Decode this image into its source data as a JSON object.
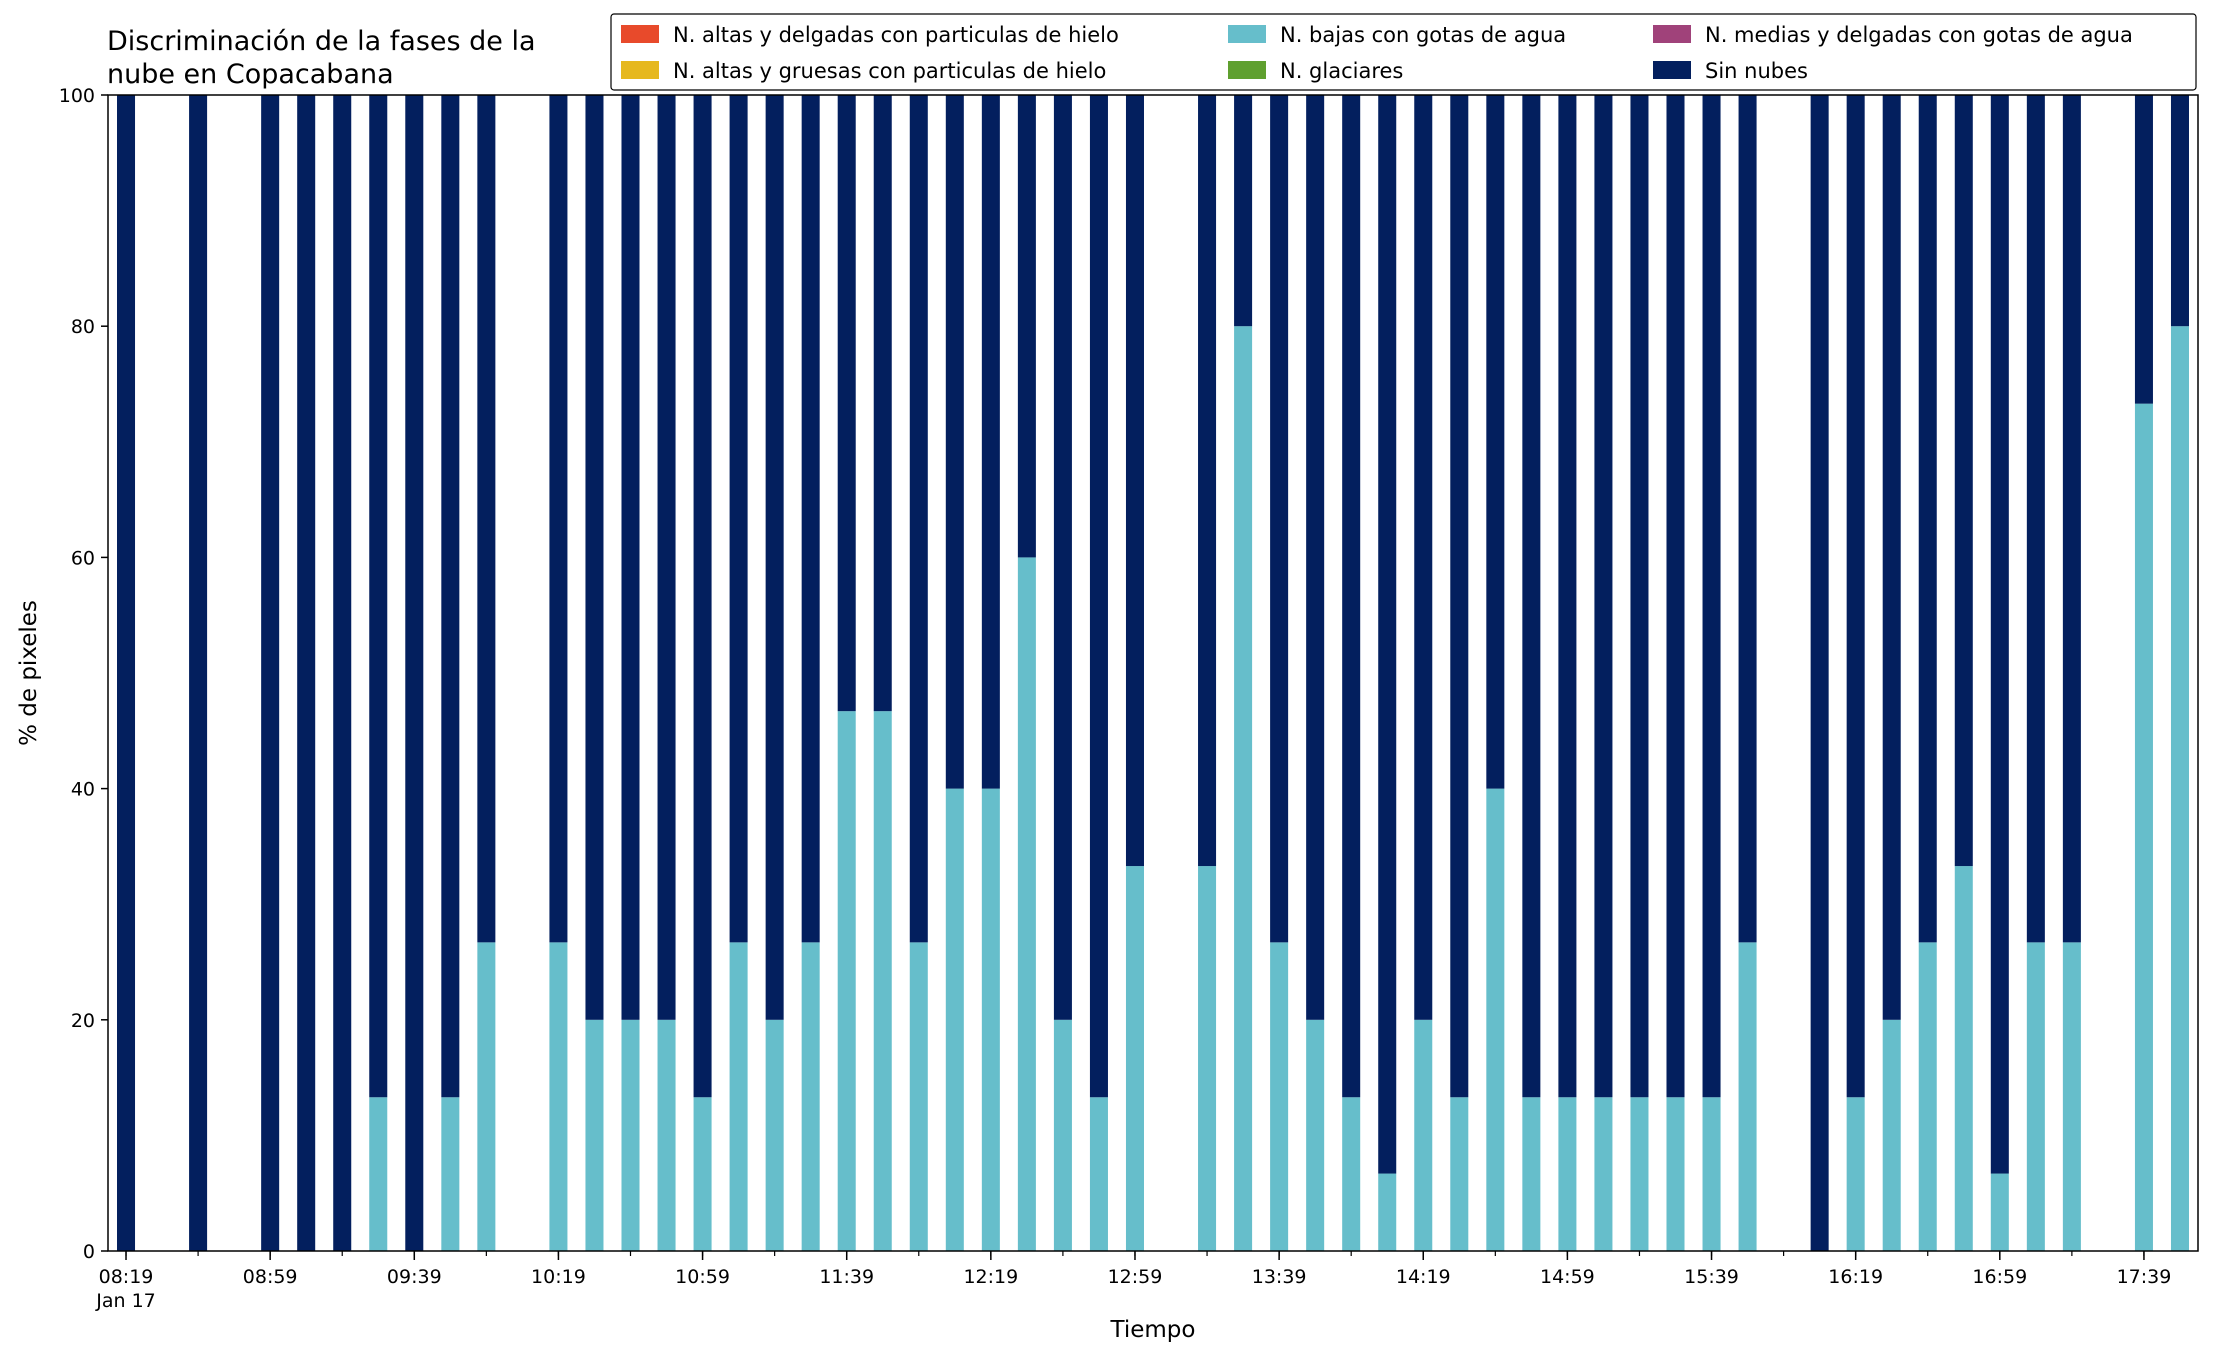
{
  "chart_data": {
    "type": "bar",
    "stacked": true,
    "title_lines": [
      "Discriminación de la fases de la",
      "nube en Copacabana"
    ],
    "xlabel": "Tiempo",
    "ylabel": "% de pixeles",
    "ylim": [
      0,
      100
    ],
    "yticks": [
      0,
      20,
      40,
      60,
      80,
      100
    ],
    "grid": false,
    "legend_position": "top-right",
    "x": [
      "08:19",
      "08:29",
      "08:39",
      "08:49",
      "08:59",
      "09:09",
      "09:19",
      "09:29",
      "09:39",
      "09:49",
      "09:59",
      "10:09",
      "10:19",
      "10:29",
      "10:39",
      "10:49",
      "10:59",
      "11:09",
      "11:19",
      "11:29",
      "11:39",
      "11:49",
      "11:59",
      "12:09",
      "12:19",
      "12:29",
      "12:39",
      "12:49",
      "12:59",
      "13:09",
      "13:19",
      "13:29",
      "13:39",
      "13:49",
      "13:59",
      "14:09",
      "14:19",
      "14:29",
      "14:39",
      "14:49",
      "14:59",
      "15:09",
      "15:19",
      "15:29",
      "15:39",
      "15:49",
      "15:59",
      "16:09",
      "16:19",
      "16:29",
      "16:39",
      "16:49",
      "16:59",
      "17:09",
      "17:19",
      "17:29",
      "17:39",
      "17:49"
    ],
    "xtick_labels": [
      {
        "time": "08:19",
        "line1": "08:19",
        "line2": "Jan 17"
      },
      {
        "time": "08:59",
        "line1": "08:59",
        "line2": ""
      },
      {
        "time": "09:39",
        "line1": "09:39",
        "line2": ""
      },
      {
        "time": "10:19",
        "line1": "10:19",
        "line2": ""
      },
      {
        "time": "10:59",
        "line1": "10:59",
        "line2": ""
      },
      {
        "time": "11:39",
        "line1": "11:39",
        "line2": ""
      },
      {
        "time": "12:19",
        "line1": "12:19",
        "line2": ""
      },
      {
        "time": "12:59",
        "line1": "12:59",
        "line2": ""
      },
      {
        "time": "13:39",
        "line1": "13:39",
        "line2": ""
      },
      {
        "time": "14:19",
        "line1": "14:19",
        "line2": ""
      },
      {
        "time": "14:59",
        "line1": "14:59",
        "line2": ""
      },
      {
        "time": "15:39",
        "line1": "15:39",
        "line2": ""
      },
      {
        "time": "16:19",
        "line1": "16:19",
        "line2": ""
      },
      {
        "time": "16:59",
        "line1": "16:59",
        "line2": ""
      },
      {
        "time": "17:39",
        "line1": "17:39",
        "line2": ""
      }
    ],
    "series": [
      {
        "name": "N. altas y delgadas con particulas de hielo",
        "color": "#e84a2b",
        "values": [
          0,
          null,
          0,
          null,
          0,
          0,
          0,
          0,
          0,
          0,
          0,
          null,
          0,
          0,
          0,
          0,
          0,
          0,
          0,
          0,
          0,
          0,
          0,
          0,
          0,
          0,
          0,
          0,
          0,
          null,
          0,
          0,
          0,
          0,
          0,
          0,
          0,
          0,
          0,
          0,
          0,
          0,
          0,
          0,
          0,
          0,
          null,
          0,
          0,
          0,
          0,
          0,
          0,
          0,
          0,
          null,
          0,
          0
        ]
      },
      {
        "name": "N. altas y gruesas con particulas de hielo",
        "color": "#e6b81e",
        "values": [
          0,
          null,
          0,
          null,
          0,
          0,
          0,
          0,
          0,
          0,
          0,
          null,
          0,
          0,
          0,
          0,
          0,
          0,
          0,
          0,
          0,
          0,
          0,
          0,
          0,
          0,
          0,
          0,
          0,
          null,
          0,
          0,
          0,
          0,
          0,
          0,
          0,
          0,
          0,
          0,
          0,
          0,
          0,
          0,
          0,
          0,
          null,
          0,
          0,
          0,
          0,
          0,
          0,
          0,
          0,
          null,
          0,
          0
        ]
      },
      {
        "name": "N. bajas con gotas de agua",
        "color": "#66becb",
        "values": [
          0,
          null,
          0,
          null,
          0,
          0,
          0,
          13.3,
          0,
          13.3,
          26.7,
          null,
          26.7,
          20,
          20,
          20,
          13.3,
          26.7,
          20,
          26.7,
          46.7,
          46.7,
          26.7,
          40,
          40,
          60,
          20,
          13.3,
          33.3,
          null,
          33.3,
          80,
          26.7,
          20,
          13.3,
          6.7,
          20,
          13.3,
          40,
          13.3,
          13.3,
          13.3,
          13.3,
          13.3,
          13.3,
          26.7,
          null,
          0,
          13.3,
          20,
          26.7,
          33.3,
          6.7,
          26.7,
          26.7,
          null,
          73.3,
          80
        ]
      },
      {
        "name": "N. glaciares",
        "color": "#5fa02f",
        "values": [
          0,
          null,
          0,
          null,
          0,
          0,
          0,
          0,
          0,
          0,
          0,
          null,
          0,
          0,
          0,
          0,
          0,
          0,
          0,
          0,
          0,
          0,
          0,
          0,
          0,
          0,
          0,
          0,
          0,
          null,
          0,
          0,
          0,
          0,
          0,
          0,
          0,
          0,
          0,
          0,
          0,
          0,
          0,
          0,
          0,
          0,
          null,
          0,
          0,
          0,
          0,
          0,
          0,
          0,
          0,
          null,
          0,
          0
        ]
      },
      {
        "name": "N. medias y delgadas con gotas de agua",
        "color": "#a0427a",
        "values": [
          0,
          null,
          0,
          null,
          0,
          0,
          0,
          0,
          0,
          0,
          0,
          null,
          0,
          0,
          0,
          0,
          0,
          0,
          0,
          0,
          0,
          0,
          0,
          0,
          0,
          0,
          0,
          0,
          0,
          null,
          0,
          0,
          0,
          0,
          0,
          0,
          0,
          0,
          0,
          0,
          0,
          0,
          0,
          0,
          0,
          0,
          null,
          0,
          0,
          0,
          0,
          0,
          0,
          0,
          0,
          null,
          0,
          0
        ]
      },
      {
        "name": "Sin nubes",
        "color": "#031f5e",
        "values": [
          100,
          null,
          100,
          null,
          100,
          100,
          100,
          86.7,
          100,
          86.7,
          73.3,
          null,
          73.3,
          80,
          80,
          80,
          86.7,
          73.3,
          80,
          73.3,
          53.3,
          53.3,
          73.3,
          60,
          60,
          40,
          80,
          86.7,
          66.7,
          null,
          66.7,
          20,
          73.3,
          80,
          86.7,
          93.3,
          80,
          86.7,
          60,
          86.7,
          86.7,
          86.7,
          86.7,
          86.7,
          86.7,
          73.3,
          null,
          100,
          86.7,
          80,
          73.3,
          66.7,
          93.3,
          73.3,
          73.3,
          null,
          26.7,
          20
        ]
      }
    ]
  }
}
